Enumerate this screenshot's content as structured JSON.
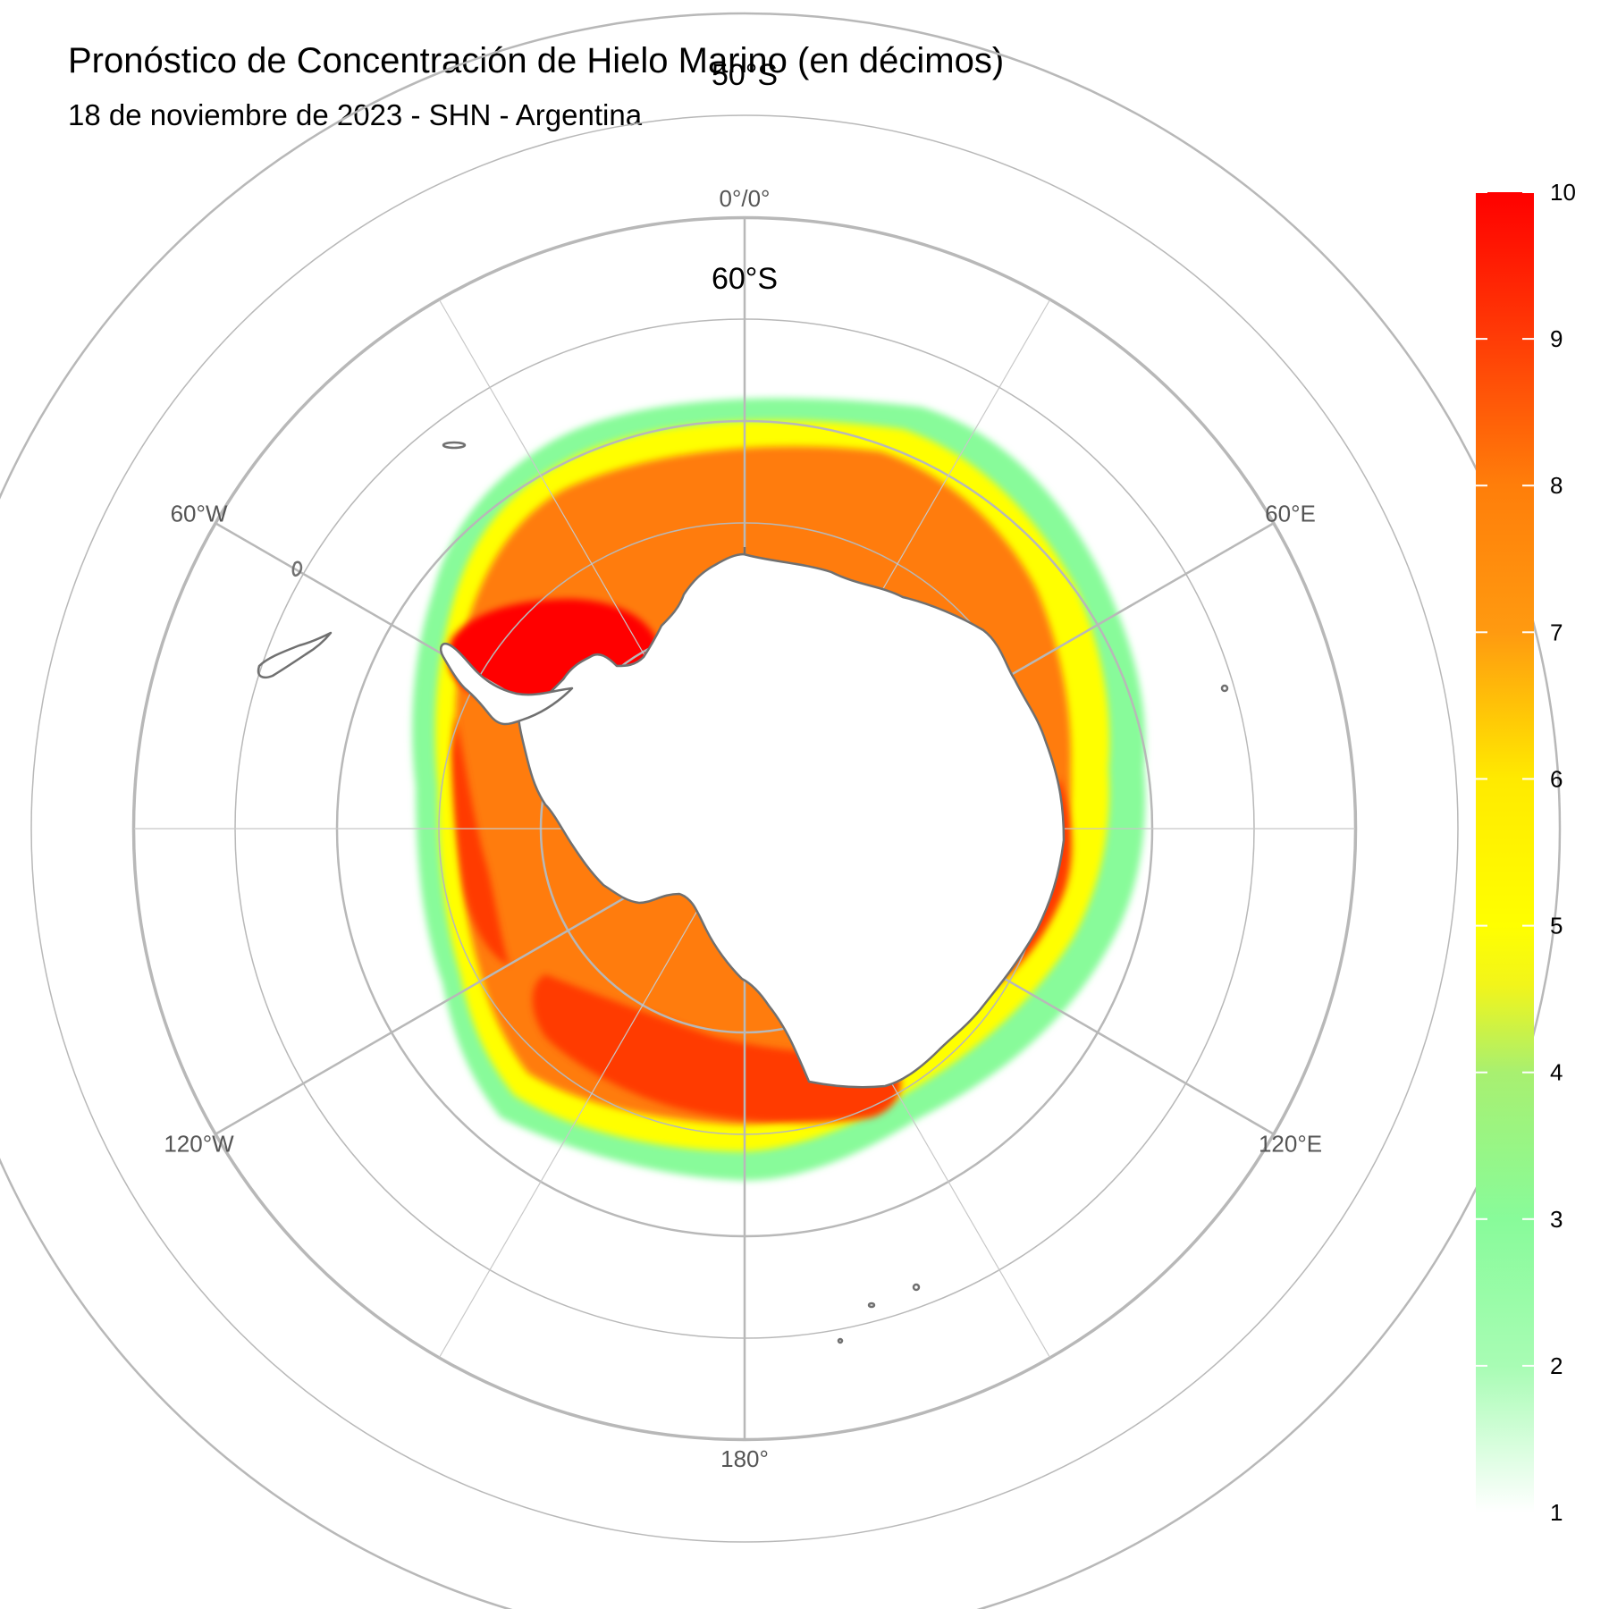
{
  "title": "Pronóstico de Concentración de Hielo Marino (en décimos)",
  "subtitle": "18 de noviembre de 2023 - SHN - Argentina",
  "longitude_labels": [
    {
      "text": "0°/0°",
      "lon": 0
    },
    {
      "text": "60°E",
      "lon": 60
    },
    {
      "text": "120°E",
      "lon": 120
    },
    {
      "text": "180°",
      "lon": 180
    },
    {
      "text": "120°W",
      "lon": -120
    },
    {
      "text": "60°W",
      "lon": -60
    }
  ],
  "latitude_labels": [
    {
      "text": "50°S",
      "lat": -50
    },
    {
      "text": "60°S",
      "lat": -60
    }
  ],
  "colorbar": {
    "min": 1,
    "max": 10,
    "ticks": [
      "1",
      "2",
      "3",
      "4",
      "5",
      "6",
      "7",
      "8",
      "9",
      "10"
    ],
    "stops": [
      {
        "value": 1,
        "color": "#ffffff"
      },
      {
        "value": 2,
        "color": "#a8fcb4"
      },
      {
        "value": 3,
        "color": "#88fb9a"
      },
      {
        "value": 4,
        "color": "#a8f070"
      },
      {
        "value": 4.6,
        "color": "#f2f51a"
      },
      {
        "value": 5,
        "color": "#ffff00"
      },
      {
        "value": 6,
        "color": "#ffea00"
      },
      {
        "value": 7,
        "color": "#ff9a10"
      },
      {
        "value": 8,
        "color": "#ff7e0a"
      },
      {
        "value": 9,
        "color": "#ff3c06"
      },
      {
        "value": 10,
        "color": "#ff0000"
      }
    ]
  },
  "colors": {
    "grid": "#b8b8b8",
    "coast": "#707070",
    "ice_10": "#ff0000",
    "ice_9": "#ff3a06",
    "ice_8": "#ff7b0c",
    "ice_6": "#ffff00",
    "ice_3": "#88fb9a"
  }
}
